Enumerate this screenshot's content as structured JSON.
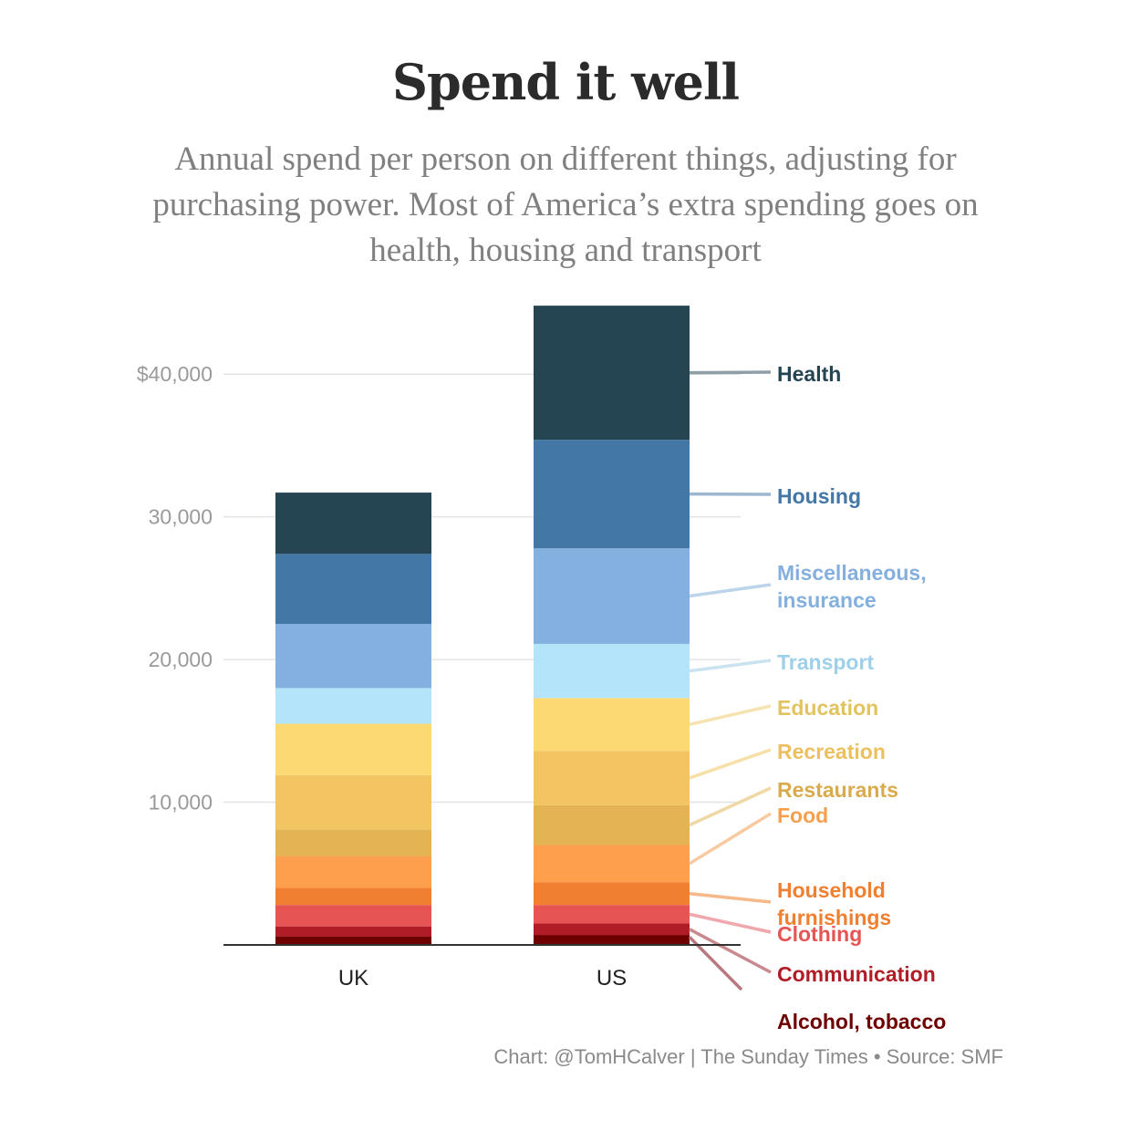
{
  "chart_data": {
    "type": "bar",
    "stacked": true,
    "title": "Spend it well",
    "subtitle": "Annual spend per person on different things, adjusting for purchasing power. Most of America’s extra spending goes on health, housing and transport",
    "categories": [
      "UK",
      "US"
    ],
    "ylim": [
      0,
      45000
    ],
    "yticks": [
      10000,
      20000,
      30000,
      40000
    ],
    "ytick_labels": [
      "10,000",
      "20,000",
      "30,000",
      "$40,000"
    ],
    "grid": true,
    "series": [
      {
        "name": "Alcohol, tobacco",
        "color": "#6e0000",
        "label_color": "#6e0000",
        "line_color": "#b87a7f",
        "values": [
          600,
          700
        ]
      },
      {
        "name": "Communication",
        "color": "#b01d26",
        "label_color": "#b01d26",
        "line_color": "#c98a8f",
        "values": [
          700,
          800
        ]
      },
      {
        "name": "Clothing",
        "color": "#e65454",
        "label_color": "#e65454",
        "line_color": "#f0a7ad",
        "values": [
          1500,
          1300
        ]
      },
      {
        "name": "Household furnishings",
        "color": "#f07f30",
        "label_color": "#f07f30",
        "line_color": "#f5b98a",
        "values": [
          1200,
          1600
        ]
      },
      {
        "name": "Food",
        "color": "#fd9f4d",
        "label_color": "#f6a04d",
        "line_color": "#f9c9a0",
        "values": [
          2200,
          2600
        ]
      },
      {
        "name": "Restaurants",
        "color": "#e4b454",
        "label_color": "#d9ab4c",
        "line_color": "#f0d8a6",
        "values": [
          1900,
          2800
        ]
      },
      {
        "name": "Recreation",
        "color": "#f3c462",
        "label_color": "#ecc05f",
        "line_color": "#f7e0a8",
        "values": [
          3800,
          3800
        ]
      },
      {
        "name": "Education",
        "color": "#fdd974",
        "label_color": "#e1c35f",
        "line_color": "#f5e4b1",
        "values": [
          3600,
          3700
        ]
      },
      {
        "name": "Transport",
        "color": "#b3e4fa",
        "label_color": "#9ed0ea",
        "line_color": "#c9e3f1",
        "values": [
          2500,
          3800
        ]
      },
      {
        "name": "Miscellaneous, insurance",
        "color": "#83b0df",
        "label_color": "#85b0de",
        "line_color": "#bdd5ea",
        "values": [
          4500,
          6700
        ]
      },
      {
        "name": "Housing",
        "color": "#4277a6",
        "label_color": "#4277a6",
        "line_color": "#9cb7cf",
        "values": [
          4900,
          7600
        ]
      },
      {
        "name": "Health",
        "color": "#264553",
        "label_color": "#264553",
        "line_color": "#8f9fa8",
        "values": [
          4300,
          9400
        ]
      }
    ]
  },
  "source": "Chart: @TomHCalver | The Sunday Times • Source: SMF"
}
